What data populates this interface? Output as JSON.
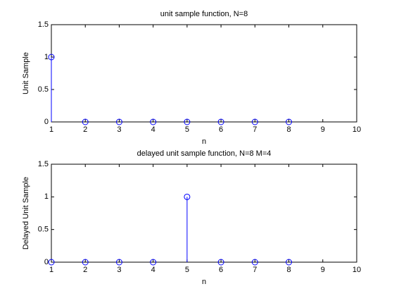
{
  "chart_data": [
    {
      "type": "stem",
      "title": "unit sample function, N=8",
      "xlabel": "n",
      "ylabel": "Unit Sample",
      "x": [
        1,
        2,
        3,
        4,
        5,
        6,
        7,
        8
      ],
      "series": [
        {
          "color": "#0000ff",
          "values": [
            1,
            0,
            0,
            0,
            0,
            0,
            0,
            0
          ]
        }
      ],
      "xlim": [
        1,
        10
      ],
      "xticks": [
        1,
        2,
        3,
        4,
        5,
        6,
        7,
        8,
        9,
        10
      ],
      "ylim": [
        0,
        1.5
      ],
      "yticks": [
        0,
        0.5,
        1,
        1.5
      ],
      "grid": false
    },
    {
      "type": "stem",
      "title": "delayed unit sample function, N=8 M=4",
      "xlabel": "n",
      "ylabel": "Delayed Unit Sample",
      "x": [
        1,
        2,
        3,
        4,
        5,
        6,
        7,
        8
      ],
      "series": [
        {
          "color": "#0000ff",
          "values": [
            0,
            0,
            0,
            0,
            1,
            0,
            0,
            0
          ]
        }
      ],
      "xlim": [
        1,
        10
      ],
      "xticks": [
        1,
        2,
        3,
        4,
        5,
        6,
        7,
        8,
        9,
        10
      ],
      "ylim": [
        0,
        1.5
      ],
      "yticks": [
        0,
        0.5,
        1,
        1.5
      ],
      "grid": false
    }
  ]
}
